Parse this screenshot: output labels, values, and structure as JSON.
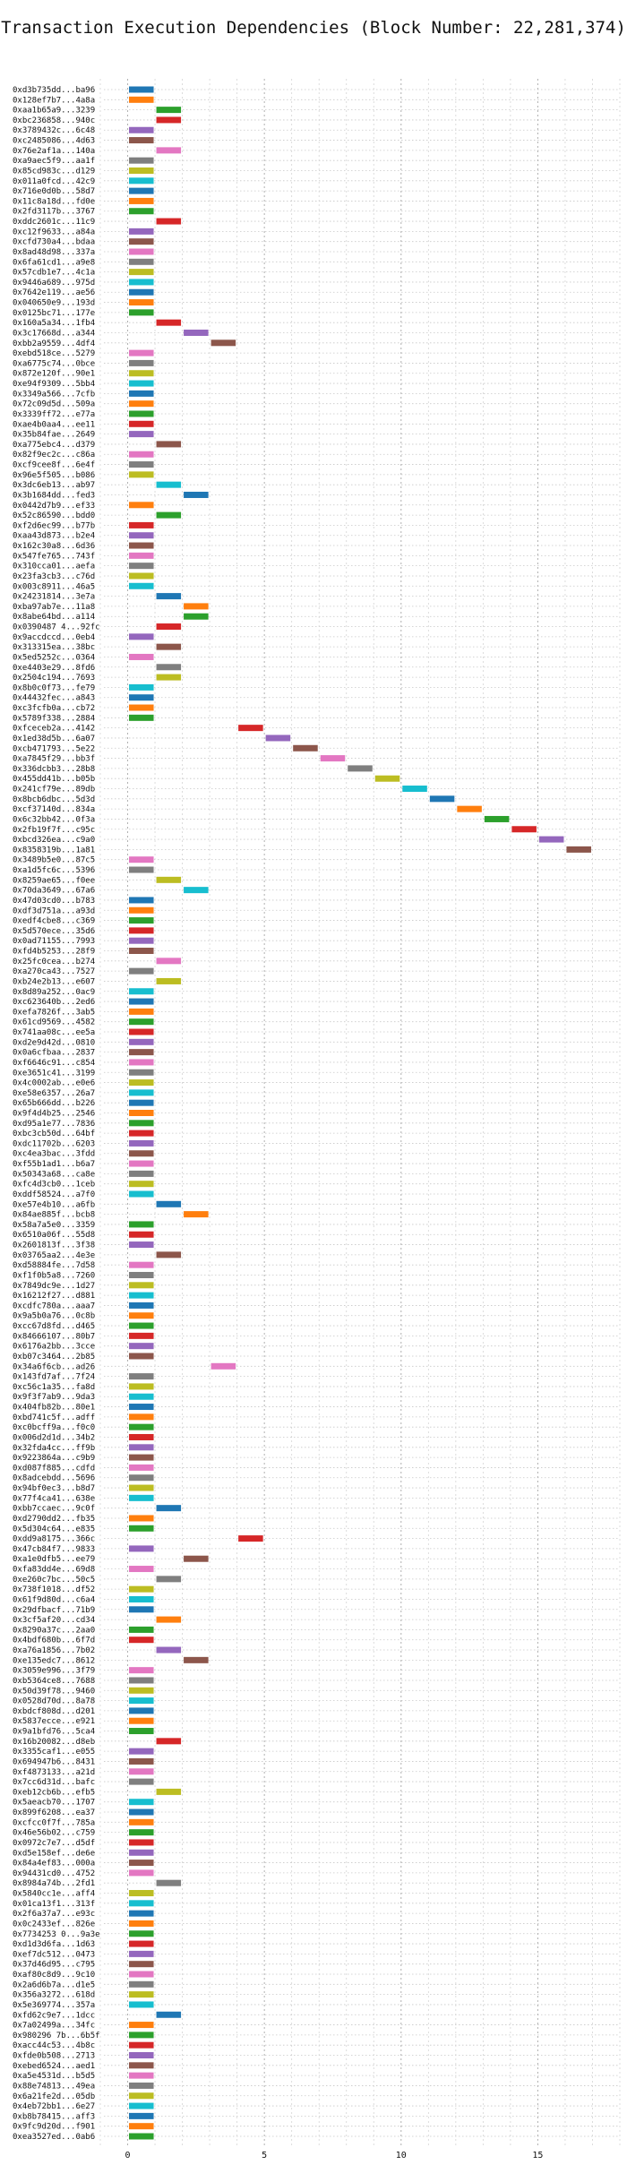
{
  "chart_data": {
    "type": "bar",
    "orientation": "horizontal",
    "title": "Transaction Execution Dependencies (Block Number: 22,281,374)",
    "xlabel": "",
    "ylabel": "",
    "xlim": [
      -1,
      18
    ],
    "xticks": [
      0,
      5,
      10,
      15
    ],
    "grid": true,
    "legend": "none",
    "palette": [
      "#1f77b4",
      "#ff7f0e",
      "#2ca02c",
      "#d62728",
      "#9467bd",
      "#8c564b",
      "#e377c2",
      "#7f7f7f",
      "#bcbd22",
      "#17becf"
    ],
    "transactions": [
      {
        "label": "0xd3b735dd...ba96",
        "start": 0
      },
      {
        "label": "0x128ef7b7...4a8a",
        "start": 0
      },
      {
        "label": "0xaa1b65a9...3239",
        "start": 1
      },
      {
        "label": "0xbc236858...940c",
        "start": 1
      },
      {
        "label": "0x3789432c...6c48",
        "start": 0
      },
      {
        "label": "0xc2485086...4d63",
        "start": 0
      },
      {
        "label": "0x76e2af1a...140a",
        "start": 1
      },
      {
        "label": "0xa9aec5f9...aa1f",
        "start": 0
      },
      {
        "label": "0x85cd983c...d129",
        "start": 0
      },
      {
        "label": "0x011a0fcd...42c9",
        "start": 0
      },
      {
        "label": "0x716e0d0b...58d7",
        "start": 0
      },
      {
        "label": "0x11c8a18d...fd0e",
        "start": 0
      },
      {
        "label": "0x2fd3117b...3767",
        "start": 0
      },
      {
        "label": "0xddc2601c...11c9",
        "start": 1
      },
      {
        "label": "0xc12f9633...a84a",
        "start": 0
      },
      {
        "label": "0xcfd730a4...bdaa",
        "start": 0
      },
      {
        "label": "0x8ad48d98...337a",
        "start": 0
      },
      {
        "label": "0x6fa61cd1...a9e8",
        "start": 0
      },
      {
        "label": "0x57cdb1e7...4c1a",
        "start": 0
      },
      {
        "label": "0x9446a689...975d",
        "start": 0
      },
      {
        "label": "0x7642e119...ae56",
        "start": 0
      },
      {
        "label": "0x040650e9...193d",
        "start": 0
      },
      {
        "label": "0x0125bc71...177e",
        "start": 0
      },
      {
        "label": "0x160a5a34...1fb4",
        "start": 1
      },
      {
        "label": "0x3c17668d...a344",
        "start": 2
      },
      {
        "label": "0xbb2a9559...4df4",
        "start": 3
      },
      {
        "label": "0xebd518ce...5279",
        "start": 0
      },
      {
        "label": "0xa6775c74...0bce",
        "start": 0
      },
      {
        "label": "0x872e120f...90e1",
        "start": 0
      },
      {
        "label": "0xe94f9309...5bb4",
        "start": 0
      },
      {
        "label": "0x3349a566...7cfb",
        "start": 0
      },
      {
        "label": "0x72c09d5d...509a",
        "start": 0
      },
      {
        "label": "0x3339ff72...e77a",
        "start": 0
      },
      {
        "label": "0xae4b0aa4...ee11",
        "start": 0
      },
      {
        "label": "0x35b84fae...2649",
        "start": 0
      },
      {
        "label": "0xa775ebc4...d379",
        "start": 1
      },
      {
        "label": "0x82f9ec2c...c86a",
        "start": 0
      },
      {
        "label": "0xcf9cee8f...6e4f",
        "start": 0
      },
      {
        "label": "0x96e5f505...b086",
        "start": 0
      },
      {
        "label": "0x3dc6eb13...ab97",
        "start": 1
      },
      {
        "label": "0x3b1684dd...fed3",
        "start": 2
      },
      {
        "label": "0x0442d7b9...ef33",
        "start": 0
      },
      {
        "label": "0x52c86590...bdd0",
        "start": 1
      },
      {
        "label": "0xf2d6ec99...b77b",
        "start": 0
      },
      {
        "label": "0xaa43d873...b2e4",
        "start": 0
      },
      {
        "label": "0x162c30a8...6d36",
        "start": 0
      },
      {
        "label": "0x547fe765...743f",
        "start": 0
      },
      {
        "label": "0x310cca01...aefa",
        "start": 0
      },
      {
        "label": "0x23fa3cb3...c76d",
        "start": 0
      },
      {
        "label": "0x003c8911...46a5",
        "start": 0
      },
      {
        "label": "0x24231814...3e7a",
        "start": 1
      },
      {
        "label": "0xba97ab7e...11a8",
        "start": 2
      },
      {
        "label": "0x8abe64bd...a114",
        "start": 2
      },
      {
        "label": "0x0390487 4...92fc",
        "start": 1
      },
      {
        "label": "0x9accdccd...0eb4",
        "start": 0
      },
      {
        "label": "0x313315ea...38bc",
        "start": 1
      },
      {
        "label": "0x5ed5252c...0364",
        "start": 0
      },
      {
        "label": "0xe4403e29...8fd6",
        "start": 1
      },
      {
        "label": "0x2504c194...7693",
        "start": 1
      },
      {
        "label": "0x8b0c0f73...fe79",
        "start": 0
      },
      {
        "label": "0x44432fec...a843",
        "start": 0
      },
      {
        "label": "0xc3fcfb0a...cb72",
        "start": 0
      },
      {
        "label": "0x5789f338...2884",
        "start": 0
      },
      {
        "label": "0xfceceb2a...4142",
        "start": 4
      },
      {
        "label": "0x1ed38d5b...6a07",
        "start": 5
      },
      {
        "label": "0xcb471793...5e22",
        "start": 6
      },
      {
        "label": "0xa7845f29...bb3f",
        "start": 7
      },
      {
        "label": "0x336dcbb3...28b8",
        "start": 8
      },
      {
        "label": "0x455dd41b...b05b",
        "start": 9
      },
      {
        "label": "0x241cf79e...89db",
        "start": 10
      },
      {
        "label": "0x8bcb6dbc...5d3d",
        "start": 11
      },
      {
        "label": "0xcf37140d...834a",
        "start": 12
      },
      {
        "label": "0x6c32bb42...0f3a",
        "start": 13
      },
      {
        "label": "0x2fb19f7f...c95c",
        "start": 14
      },
      {
        "label": "0xbcd326ea...c9a0",
        "start": 15
      },
      {
        "label": "0x8358319b...1a81",
        "start": 16
      },
      {
        "label": "0x3489b5e0...87c5",
        "start": 0
      },
      {
        "label": "0xa1d5fc6c...5396",
        "start": 0
      },
      {
        "label": "0x8259ae65...f0ee",
        "start": 1
      },
      {
        "label": "0x70da3649...67a6",
        "start": 2
      },
      {
        "label": "0x47d03cd0...b783",
        "start": 0
      },
      {
        "label": "0xdf3d751a...a93d",
        "start": 0
      },
      {
        "label": "0xedf4cbe8...c369",
        "start": 0
      },
      {
        "label": "0x5d570ece...35d6",
        "start": 0
      },
      {
        "label": "0x0ad71155...7993",
        "start": 0
      },
      {
        "label": "0xfd4b5253...28f9",
        "start": 0
      },
      {
        "label": "0x25fc0cea...b274",
        "start": 1
      },
      {
        "label": "0xa270ca43...7527",
        "start": 0
      },
      {
        "label": "0xb24e2b13...e607",
        "start": 1
      },
      {
        "label": "0x8d89a252...0ac9",
        "start": 0
      },
      {
        "label": "0xc623640b...2ed6",
        "start": 0
      },
      {
        "label": "0xefa7826f...3ab5",
        "start": 0
      },
      {
        "label": "0x61cd9569...4582",
        "start": 0
      },
      {
        "label": "0x741aa08c...ee5a",
        "start": 0
      },
      {
        "label": "0xd2e9d42d...0810",
        "start": 0
      },
      {
        "label": "0x0a6cfbaa...2837",
        "start": 0
      },
      {
        "label": "0xf6646c91...c854",
        "start": 0
      },
      {
        "label": "0xe3651c41...3199",
        "start": 0
      },
      {
        "label": "0x4c0002ab...e0e6",
        "start": 0
      },
      {
        "label": "0xe58e6357...26a7",
        "start": 0
      },
      {
        "label": "0x65b666dd...b226",
        "start": 0
      },
      {
        "label": "0x9f4d4b25...2546",
        "start": 0
      },
      {
        "label": "0xd95a1e77...7836",
        "start": 0
      },
      {
        "label": "0xbc3cb50d...64bf",
        "start": 0
      },
      {
        "label": "0xdc11702b...6203",
        "start": 0
      },
      {
        "label": "0xc4ea3bac...3fdd",
        "start": 0
      },
      {
        "label": "0xf55b1ad1...b6a7",
        "start": 0
      },
      {
        "label": "0x50343a68...ca8e",
        "start": 0
      },
      {
        "label": "0xfc4d3cb0...1ceb",
        "start": 0
      },
      {
        "label": "0xddf58524...a7f0",
        "start": 0
      },
      {
        "label": "0xe57e4b10...a6fb",
        "start": 1
      },
      {
        "label": "0x84ae885f...bcb8",
        "start": 2
      },
      {
        "label": "0x58a7a5e0...3359",
        "start": 0
      },
      {
        "label": "0x6510a06f...55d8",
        "start": 0
      },
      {
        "label": "0x2601813f...3f38",
        "start": 0
      },
      {
        "label": "0x03765aa2...4e3e",
        "start": 1
      },
      {
        "label": "0xd58884fe...7d58",
        "start": 0
      },
      {
        "label": "0xf1f0b5a8...7260",
        "start": 0
      },
      {
        "label": "0x7849dc9e...1d27",
        "start": 0
      },
      {
        "label": "0x16212f27...d881",
        "start": 0
      },
      {
        "label": "0xcdfc780a...aaa7",
        "start": 0
      },
      {
        "label": "0x9a5b0a76...0c8b",
        "start": 0
      },
      {
        "label": "0xcc67d8fd...d465",
        "start": 0
      },
      {
        "label": "0x84666107...80b7",
        "start": 0
      },
      {
        "label": "0x6176a2bb...3cce",
        "start": 0
      },
      {
        "label": "0xb07c3464...2b85",
        "start": 0
      },
      {
        "label": "0x34a6f6cb...ad26",
        "start": 3
      },
      {
        "label": "0x143fd7af...7f24",
        "start": 0
      },
      {
        "label": "0xc56c1a35...fa8d",
        "start": 0
      },
      {
        "label": "0x9f3f7ab9...9da3",
        "start": 0
      },
      {
        "label": "0x404fb82b...80e1",
        "start": 0
      },
      {
        "label": "0xbd741c5f...adff",
        "start": 0
      },
      {
        "label": "0xc0bcff9a...f0c0",
        "start": 0
      },
      {
        "label": "0x006d2d1d...34b2",
        "start": 0
      },
      {
        "label": "0x32fda4cc...ff9b",
        "start": 0
      },
      {
        "label": "0x9223864a...c9b9",
        "start": 0
      },
      {
        "label": "0xd087f885...cdfd",
        "start": 0
      },
      {
        "label": "0x8adcebdd...5696",
        "start": 0
      },
      {
        "label": "0x94bf0ec3...b8d7",
        "start": 0
      },
      {
        "label": "0x77f4ca41...638e",
        "start": 0
      },
      {
        "label": "0xbb7ccaec...9c0f",
        "start": 1
      },
      {
        "label": "0xd2790dd2...fb35",
        "start": 0
      },
      {
        "label": "0x5d304c64...e835",
        "start": 0
      },
      {
        "label": "0xdd9a8175...366c",
        "start": 4
      },
      {
        "label": "0x47cb84f7...9833",
        "start": 0
      },
      {
        "label": "0xa1e0dfb5...ee79",
        "start": 2
      },
      {
        "label": "0xfa83dd4e...69d8",
        "start": 0
      },
      {
        "label": "0xe260c7bc...50c5",
        "start": 1
      },
      {
        "label": "0x738f1018...df52",
        "start": 0
      },
      {
        "label": "0x61f9d80d...c6a4",
        "start": 0
      },
      {
        "label": "0x29dfbacf...71b9",
        "start": 0
      },
      {
        "label": "0x3cf5af20...cd34",
        "start": 1
      },
      {
        "label": "0x8290a37c...2aa0",
        "start": 0
      },
      {
        "label": "0x4bdf680b...6f7d",
        "start": 0
      },
      {
        "label": "0xa76a1856...7b02",
        "start": 1
      },
      {
        "label": "0xe135edc7...8612",
        "start": 2
      },
      {
        "label": "0x3059e996...3f79",
        "start": 0
      },
      {
        "label": "0xb5364ce8...7688",
        "start": 0
      },
      {
        "label": "0x50d39f78...9460",
        "start": 0
      },
      {
        "label": "0x0528d70d...8a78",
        "start": 0
      },
      {
        "label": "0xbdcf808d...d201",
        "start": 0
      },
      {
        "label": "0x5837ecce...e921",
        "start": 0
      },
      {
        "label": "0x9a1bfd76...5ca4",
        "start": 0
      },
      {
        "label": "0x16b20082...d8eb",
        "start": 1
      },
      {
        "label": "0x3355caf1...e055",
        "start": 0
      },
      {
        "label": "0x694947b6...8431",
        "start": 0
      },
      {
        "label": "0xf4873133...a21d",
        "start": 0
      },
      {
        "label": "0x7cc6d31d...bafc",
        "start": 0
      },
      {
        "label": "0xeb12cb6b...efb5",
        "start": 1
      },
      {
        "label": "0x5aeacb70...1707",
        "start": 0
      },
      {
        "label": "0x899f6208...ea37",
        "start": 0
      },
      {
        "label": "0xcfcc0f7f...785a",
        "start": 0
      },
      {
        "label": "0x46e56b02...c759",
        "start": 0
      },
      {
        "label": "0x0972c7e7...d5df",
        "start": 0
      },
      {
        "label": "0xd5e158ef...de6e",
        "start": 0
      },
      {
        "label": "0x84a4ef83...000a",
        "start": 0
      },
      {
        "label": "0x94431cd0...4752",
        "start": 0
      },
      {
        "label": "0x8984a74b...2fd1",
        "start": 1
      },
      {
        "label": "0x5840cc1e...aff4",
        "start": 0
      },
      {
        "label": "0x01ca13f1...313f",
        "start": 0
      },
      {
        "label": "0x2f6a37a7...e93c",
        "start": 0
      },
      {
        "label": "0x0c2433ef...826e",
        "start": 0
      },
      {
        "label": "0x7734253 0...9a3e",
        "start": 0
      },
      {
        "label": "0xd1d3d6fa...1d63",
        "start": 0
      },
      {
        "label": "0xef7dc512...0473",
        "start": 0
      },
      {
        "label": "0x37d46d95...c795",
        "start": 0
      },
      {
        "label": "0xaf80c8d9...9c10",
        "start": 0
      },
      {
        "label": "0x2a6d6b7a...d1e5",
        "start": 0
      },
      {
        "label": "0x356a3272...618d",
        "start": 0
      },
      {
        "label": "0x5e369774...357a",
        "start": 0
      },
      {
        "label": "0xfd62c9e7...1dcc",
        "start": 1
      },
      {
        "label": "0x7a02499a...34fc",
        "start": 0
      },
      {
        "label": "0x980296 7b...6b5f",
        "start": 0
      },
      {
        "label": "0xacc44c53...4b8c",
        "start": 0
      },
      {
        "label": "0xfde0b508...2713",
        "start": 0
      },
      {
        "label": "0xebed6524...aed1",
        "start": 0
      },
      {
        "label": "0xa5e4531d...b5d5",
        "start": 0
      },
      {
        "label": "0x88e74813...49ea",
        "start": 0
      },
      {
        "label": "0x6a21fe2d...05db",
        "start": 0
      },
      {
        "label": "0x4eb72bb1...6e27",
        "start": 0
      },
      {
        "label": "0xb8b78415...aff3",
        "start": 0
      },
      {
        "label": "0x9fc9d20d...f901",
        "start": 0
      },
      {
        "label": "0xea3527ed...0ab6",
        "start": 0
      }
    ]
  }
}
